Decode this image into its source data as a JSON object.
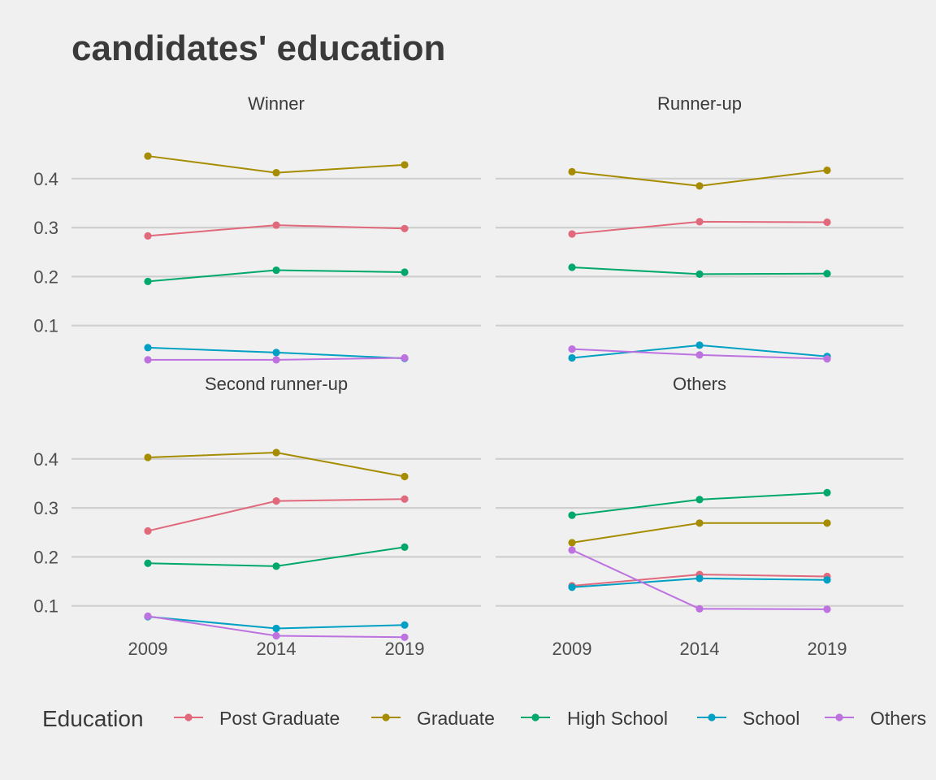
{
  "chart_data": {
    "type": "line",
    "title": "candidates' education",
    "x": [
      "2009",
      "2014",
      "2019"
    ],
    "y_ticks": [
      0.1,
      0.2,
      0.3,
      0.4
    ],
    "ylim": [
      0.0,
      0.47
    ],
    "grid": "horizontal",
    "legend_placement": "bottom",
    "legend_title": "Education",
    "series_colors": {
      "Post Graduate": "#e0697c",
      "Graduate": "#a68c00",
      "High School": "#00a86b",
      "School": "#00a0c4",
      "Others": "#bd72e0"
    },
    "series_names": [
      "Post Graduate",
      "Graduate",
      "High School",
      "School",
      "Others"
    ],
    "panels": [
      {
        "name": "Winner",
        "series": [
          {
            "name": "Post Graduate",
            "values": [
              0.283,
              0.305,
              0.298
            ]
          },
          {
            "name": "Graduate",
            "values": [
              0.446,
              0.412,
              0.428
            ]
          },
          {
            "name": "High School",
            "values": [
              0.19,
              0.213,
              0.209
            ]
          },
          {
            "name": "School",
            "values": [
              0.055,
              0.045,
              0.033
            ]
          },
          {
            "name": "Others",
            "values": [
              0.03,
              0.03,
              0.034
            ]
          }
        ]
      },
      {
        "name": "Runner-up",
        "series": [
          {
            "name": "Post Graduate",
            "values": [
              0.287,
              0.312,
              0.311
            ]
          },
          {
            "name": "Graduate",
            "values": [
              0.414,
              0.385,
              0.417
            ]
          },
          {
            "name": "High School",
            "values": [
              0.219,
              0.205,
              0.206
            ]
          },
          {
            "name": "School",
            "values": [
              0.034,
              0.06,
              0.037
            ]
          },
          {
            "name": "Others",
            "values": [
              0.052,
              0.04,
              0.032
            ]
          }
        ]
      },
      {
        "name": "Second runner-up",
        "series": [
          {
            "name": "Post Graduate",
            "values": [
              0.253,
              0.314,
              0.318
            ]
          },
          {
            "name": "Graduate",
            "values": [
              0.403,
              0.413,
              0.364
            ]
          },
          {
            "name": "High School",
            "values": [
              0.187,
              0.181,
              0.22
            ]
          },
          {
            "name": "School",
            "values": [
              0.078,
              0.054,
              0.061
            ]
          },
          {
            "name": "Others",
            "values": [
              0.079,
              0.039,
              0.036
            ]
          }
        ]
      },
      {
        "name": "Others",
        "series": [
          {
            "name": "Post Graduate",
            "values": [
              0.141,
              0.164,
              0.16
            ]
          },
          {
            "name": "Graduate",
            "values": [
              0.229,
              0.269,
              0.269
            ]
          },
          {
            "name": "High School",
            "values": [
              0.285,
              0.317,
              0.331
            ]
          },
          {
            "name": "School",
            "values": [
              0.138,
              0.156,
              0.153
            ]
          },
          {
            "name": "Others",
            "values": [
              0.214,
              0.094,
              0.093
            ]
          }
        ]
      }
    ]
  }
}
